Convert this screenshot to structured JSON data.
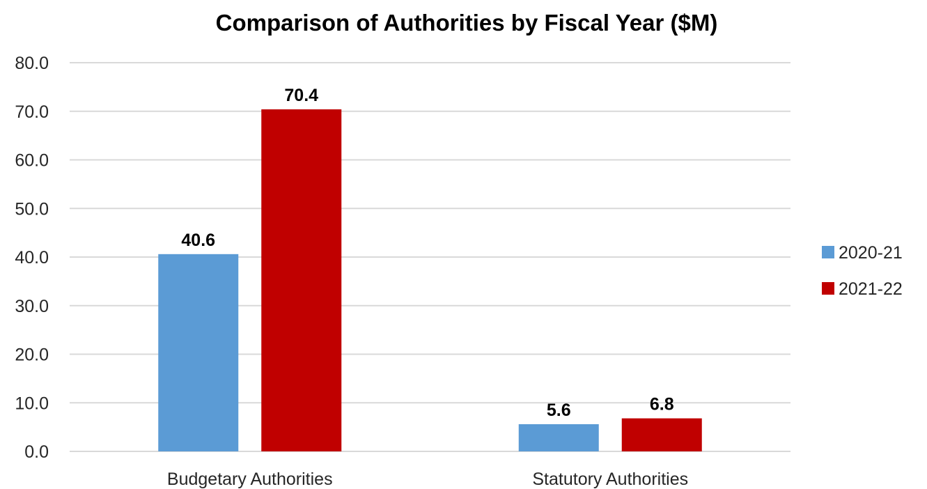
{
  "chart_data": {
    "type": "bar",
    "title": "Comparison of Authorities by Fiscal Year ($M)",
    "xlabel": "",
    "ylabel": "",
    "categories": [
      "Budgetary Authorities",
      "Statutory Authorities"
    ],
    "series": [
      {
        "name": "2020-21",
        "values": [
          40.6,
          5.6
        ],
        "color": "#5b9bd5"
      },
      {
        "name": "2021-22",
        "values": [
          70.4,
          6.8
        ],
        "color": "#c00000"
      }
    ],
    "ylim": [
      0,
      80
    ],
    "yticks": [
      "0.0",
      "10.0",
      "20.0",
      "30.0",
      "40.0",
      "50.0",
      "60.0",
      "70.0",
      "80.0"
    ],
    "data_labels": [
      [
        "40.6",
        "5.6"
      ],
      [
        "70.4",
        "6.8"
      ]
    ],
    "grid": true,
    "legend_position": "right"
  }
}
